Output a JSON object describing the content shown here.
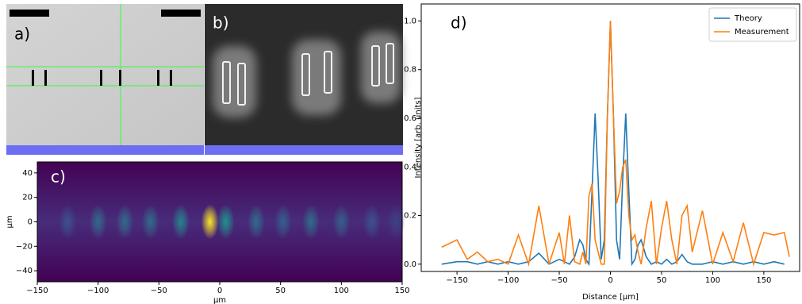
{
  "chart_data": [
    {
      "type": "image",
      "label": "a)"
    },
    {
      "type": "image",
      "label": "b)"
    },
    {
      "type": "heatmap",
      "label": "c)",
      "xlabel": "µm",
      "ylabel": "µm",
      "xlim": [
        -150,
        150
      ],
      "ylim": [
        -49,
        49
      ],
      "xticks": [
        {
          "value": -150,
          "label": "−150"
        },
        {
          "value": -100,
          "label": "−100"
        },
        {
          "value": -50,
          "label": "−50"
        },
        0,
        50,
        100,
        150
      ],
      "yticks": [
        {
          "value": -40,
          "label": "−40"
        },
        {
          "value": -20,
          "label": "−20"
        },
        0,
        20,
        40
      ],
      "x": [
        -125,
        -100,
        -78,
        -57,
        -32,
        -8,
        5,
        30,
        52,
        75,
        100,
        125,
        145
      ],
      "values": [
        0.25,
        0.35,
        0.35,
        0.35,
        0.45,
        1.0,
        0.5,
        0.35,
        0.3,
        0.35,
        0.3,
        0.25,
        0.2
      ]
    },
    {
      "type": "line",
      "label": "d)",
      "xlabel": "Distance [µm]",
      "ylabel": "Intensity [arb. units]",
      "xlim": [
        -185,
        185
      ],
      "ylim": [
        -0.03,
        1.07
      ],
      "xticks": [
        {
          "value": -150,
          "label": "−150"
        },
        {
          "value": -100,
          "label": "−100"
        },
        {
          "value": -50,
          "label": "−50"
        },
        0,
        50,
        100,
        150
      ],
      "yticks": [
        {
          "value": 0,
          "label": "0.0"
        },
        0.2,
        0.4,
        0.6,
        0.8,
        {
          "value": 1,
          "label": "1.0"
        }
      ],
      "legend": "upper right",
      "x": [
        -165,
        -150,
        -140,
        -130,
        -120,
        -110,
        -100,
        -90,
        -80,
        -70,
        -60,
        -50,
        -45,
        -40,
        -35,
        -30,
        -27,
        -24,
        -21,
        -18,
        -15,
        -12,
        -9,
        -6,
        -3,
        0,
        3,
        6,
        9,
        12,
        15,
        18,
        21,
        24,
        27,
        30,
        35,
        40,
        45,
        50,
        55,
        60,
        65,
        70,
        75,
        80,
        90,
        100,
        110,
        120,
        130,
        140,
        150,
        160,
        170,
        175
      ],
      "series": [
        {
          "name": "Theory",
          "color": "#1f77b4",
          "values": [
            0.0,
            0.01,
            0.01,
            0.0,
            0.01,
            0.0,
            0.01,
            0.0,
            0.01,
            0.045,
            0.0,
            0.02,
            0.01,
            0.0,
            0.03,
            0.1,
            0.08,
            0.02,
            0.0,
            0.3,
            0.62,
            0.35,
            0.02,
            0.1,
            0.6,
            1.0,
            0.6,
            0.1,
            0.02,
            0.35,
            0.62,
            0.3,
            0.0,
            0.02,
            0.08,
            0.1,
            0.03,
            0.0,
            0.01,
            0.0,
            0.02,
            0.0,
            0.01,
            0.04,
            0.01,
            0.0,
            0.0,
            0.01,
            0.0,
            0.01,
            0.0,
            0.01,
            0.0,
            0.01,
            0.0,
            null
          ]
        },
        {
          "name": "Measurement",
          "color": "#ff7f0e",
          "values": [
            0.07,
            0.1,
            0.02,
            0.05,
            0.01,
            0.02,
            0.0,
            0.12,
            0.0,
            0.24,
            0.0,
            0.13,
            0.0,
            0.2,
            0.01,
            0.0,
            0.05,
            0.0,
            0.28,
            0.33,
            0.1,
            0.05,
            0.0,
            0.0,
            0.6,
            1.0,
            0.6,
            0.25,
            0.3,
            0.4,
            0.43,
            0.2,
            0.1,
            0.12,
            0.05,
            0.0,
            0.15,
            0.26,
            0.0,
            0.15,
            0.26,
            0.1,
            0.0,
            0.2,
            0.24,
            0.05,
            0.22,
            0.0,
            0.13,
            0.01,
            0.17,
            0.0,
            0.13,
            0.12,
            0.13,
            0.03
          ]
        }
      ]
    }
  ]
}
